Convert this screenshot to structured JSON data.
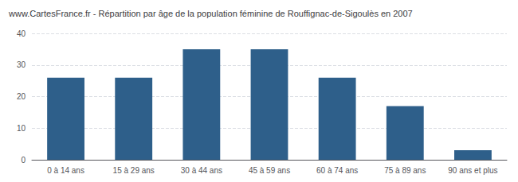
{
  "chart_data": {
    "type": "bar",
    "title": "www.CartesFrance.fr - Répartition par âge de la population féminine de Rouffignac-de-Sigoulès en 2007",
    "categories": [
      "0 à 14 ans",
      "15 à 29 ans",
      "30 à 44 ans",
      "45 à 59 ans",
      "60 à 74 ans",
      "75 à 89 ans",
      "90 ans et plus"
    ],
    "values": [
      26,
      26,
      35,
      35,
      26,
      17,
      3
    ],
    "color": "#2e5f8a",
    "ylim": [
      0,
      40
    ],
    "yticks": [
      0,
      10,
      20,
      30,
      40
    ],
    "grid": true
  }
}
